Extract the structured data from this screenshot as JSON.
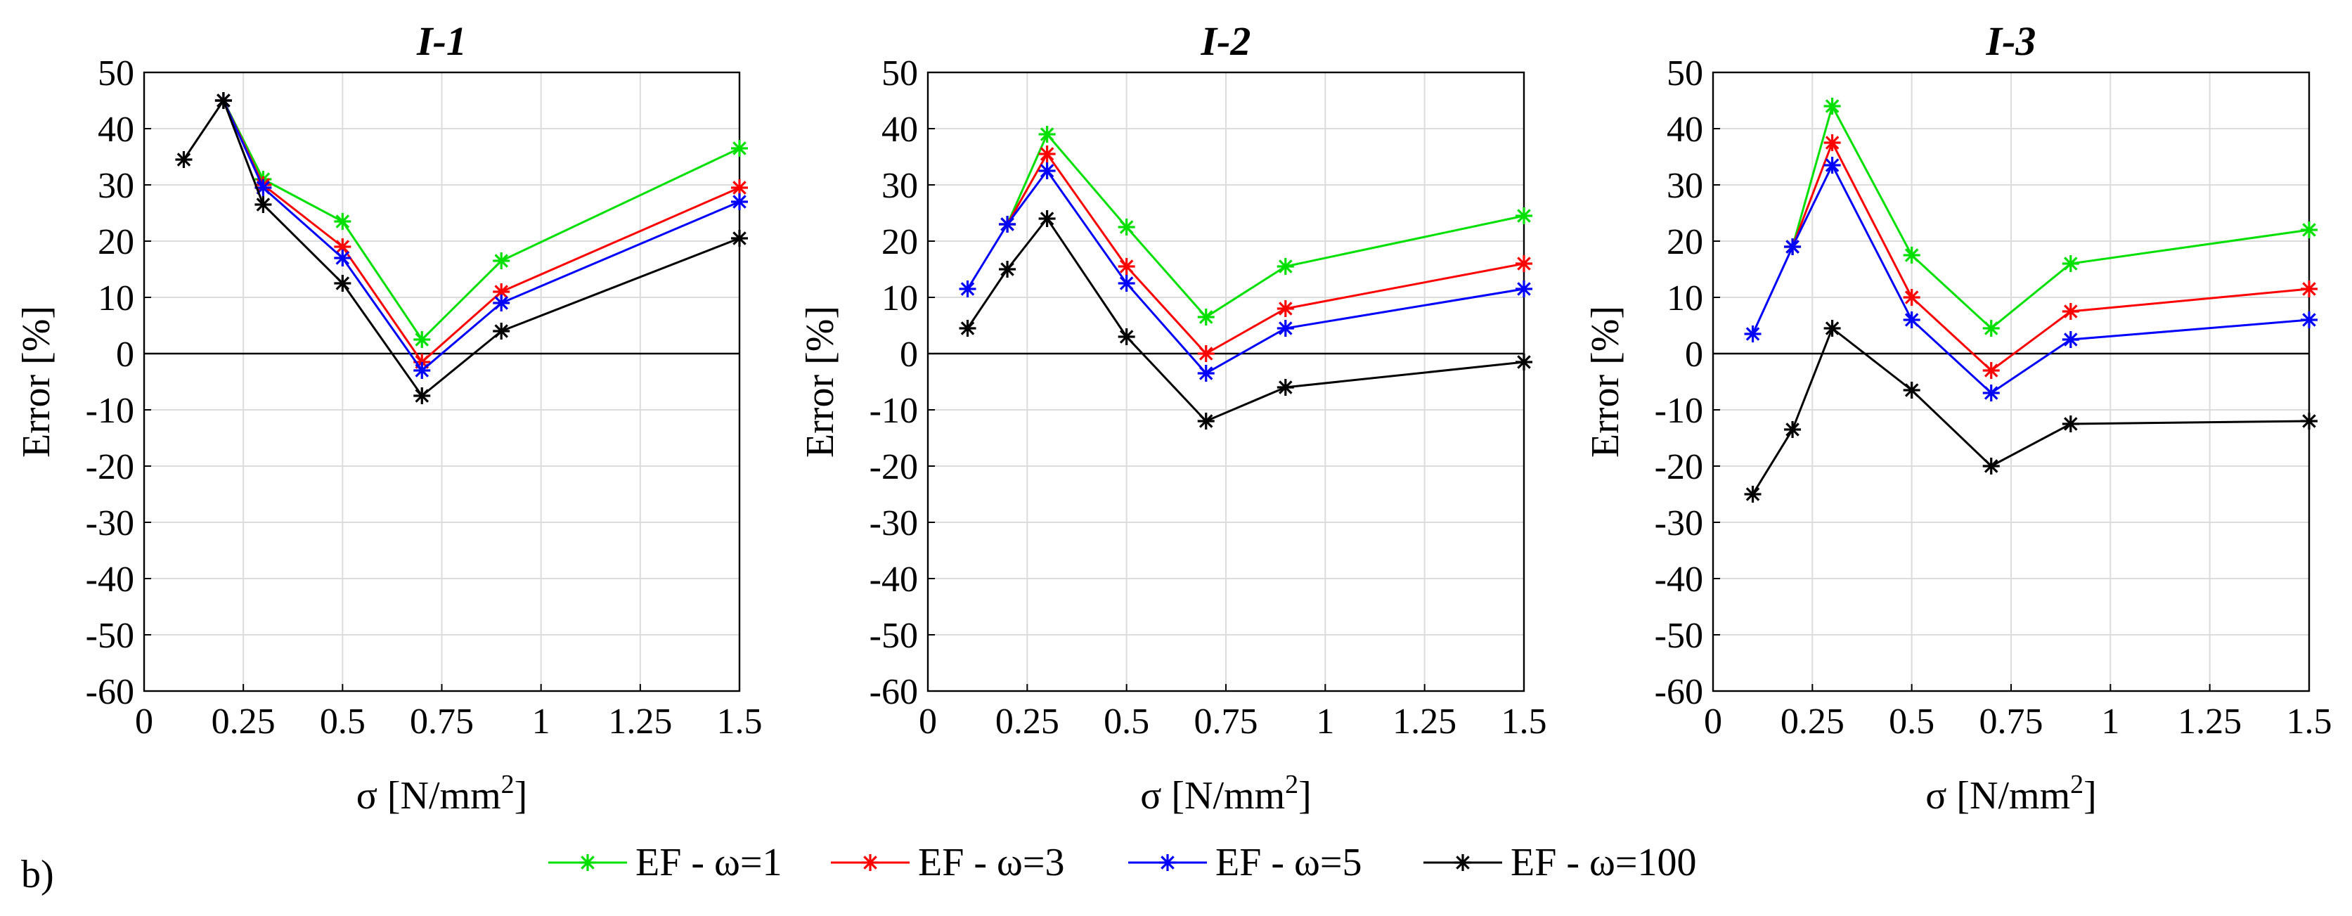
{
  "figure": {
    "panel_tag": "b)"
  },
  "colors": {
    "w1": "#00e000",
    "w3": "#ff0000",
    "w5": "#0000ff",
    "w100": "#000000",
    "grid": "#dcdcdc",
    "axis": "#000000"
  },
  "chart_data": [
    {
      "type": "line",
      "title": "I-1",
      "xlabel": "σ [N/mm",
      "xlabel_sup": "2",
      "xlabel_close": "]",
      "ylabel": "Error [%]",
      "xlim": [
        0,
        1.5
      ],
      "ylim": [
        -60,
        50
      ],
      "xticks": [
        0,
        0.25,
        0.5,
        0.75,
        1,
        1.25,
        1.5
      ],
      "xtick_labels": [
        "0",
        "0.25",
        "0.5",
        "0.75",
        "1",
        "1.25",
        "1.5"
      ],
      "yticks": [
        50,
        40,
        30,
        20,
        10,
        0,
        -10,
        -20,
        -30,
        -40,
        -50,
        -60
      ],
      "ytick_labels": [
        "50",
        "40",
        "30",
        "20",
        "10",
        "0",
        "-10",
        "-20",
        "-30",
        "-40",
        "-50",
        "-60"
      ],
      "grid": true,
      "series": [
        {
          "name": "EF - ω=1",
          "color_key": "w1",
          "x": [
            0.2,
            0.3,
            0.5,
            0.7,
            0.9,
            1.5
          ],
          "y": [
            45,
            31,
            23.5,
            2.5,
            16.5,
            36.5
          ]
        },
        {
          "name": "EF - ω=3",
          "color_key": "w3",
          "x": [
            0.2,
            0.3,
            0.5,
            0.7,
            0.9,
            1.5
          ],
          "y": [
            45,
            30,
            19,
            -1.5,
            11,
            29.5
          ]
        },
        {
          "name": "EF - ω=5",
          "color_key": "w5",
          "x": [
            0.2,
            0.3,
            0.5,
            0.7,
            0.9,
            1.5
          ],
          "y": [
            45,
            29.5,
            17,
            -3,
            9,
            27
          ]
        },
        {
          "name": "EF - ω=100",
          "color_key": "w100",
          "x": [
            0.1,
            0.2,
            0.3,
            0.5,
            0.7,
            0.9,
            1.5
          ],
          "y": [
            34.5,
            45,
            26.5,
            12.5,
            -7.5,
            4,
            20.5
          ]
        }
      ]
    },
    {
      "type": "line",
      "title": "I-2",
      "xlabel": "σ [N/mm",
      "xlabel_sup": "2",
      "xlabel_close": "]",
      "ylabel": "Error [%]",
      "xlim": [
        0,
        1.5
      ],
      "ylim": [
        -60,
        50
      ],
      "xticks": [
        0,
        0.25,
        0.5,
        0.75,
        1,
        1.25,
        1.5
      ],
      "xtick_labels": [
        "0",
        "0.25",
        "0.5",
        "0.75",
        "1",
        "1.25",
        "1.5"
      ],
      "yticks": [
        50,
        40,
        30,
        20,
        10,
        0,
        -10,
        -20,
        -30,
        -40,
        -50,
        -60
      ],
      "ytick_labels": [
        "50",
        "40",
        "30",
        "20",
        "10",
        "0",
        "-10",
        "-20",
        "-30",
        "-40",
        "-50",
        "-60"
      ],
      "grid": true,
      "series": [
        {
          "name": "EF - ω=1",
          "color_key": "w1",
          "x": [
            0.2,
            0.3,
            0.5,
            0.7,
            0.9,
            1.5
          ],
          "y": [
            23,
            39,
            22.5,
            6.5,
            15.5,
            24.5
          ]
        },
        {
          "name": "EF - ω=3",
          "color_key": "w3",
          "x": [
            0.2,
            0.3,
            0.5,
            0.7,
            0.9,
            1.5
          ],
          "y": [
            23,
            35.5,
            15.5,
            0,
            8,
            16
          ]
        },
        {
          "name": "EF - ω=5",
          "color_key": "w5",
          "x": [
            0.1,
            0.2,
            0.3,
            0.5,
            0.7,
            0.9,
            1.5
          ],
          "y": [
            11.5,
            23,
            32.5,
            12.5,
            -3.5,
            4.5,
            11.5
          ]
        },
        {
          "name": "EF - ω=100",
          "color_key": "w100",
          "x": [
            0.1,
            0.2,
            0.3,
            0.5,
            0.7,
            0.9,
            1.5
          ],
          "y": [
            4.5,
            15,
            24,
            3,
            -12,
            -6,
            -1.5
          ]
        }
      ]
    },
    {
      "type": "line",
      "title": "I-3",
      "xlabel": "σ [N/mm",
      "xlabel_sup": "2",
      "xlabel_close": "]",
      "ylabel": "Error [%]",
      "xlim": [
        0,
        1.5
      ],
      "ylim": [
        -60,
        50
      ],
      "xticks": [
        0,
        0.25,
        0.5,
        0.75,
        1,
        1.25,
        1.5
      ],
      "xtick_labels": [
        "0",
        "0.25",
        "0.5",
        "0.75",
        "1",
        "1.25",
        "1.5"
      ],
      "yticks": [
        50,
        40,
        30,
        20,
        10,
        0,
        -10,
        -20,
        -30,
        -40,
        -50,
        -60
      ],
      "ytick_labels": [
        "50",
        "40",
        "30",
        "20",
        "10",
        "0",
        "-10",
        "-20",
        "-30",
        "-40",
        "-50",
        "-60"
      ],
      "grid": true,
      "series": [
        {
          "name": "EF - ω=1",
          "color_key": "w1",
          "x": [
            0.2,
            0.3,
            0.5,
            0.7,
            0.9,
            1.5
          ],
          "y": [
            19,
            44,
            17.5,
            4.5,
            16,
            22
          ]
        },
        {
          "name": "EF - ω=3",
          "color_key": "w3",
          "x": [
            0.2,
            0.3,
            0.5,
            0.7,
            0.9,
            1.5
          ],
          "y": [
            19,
            37.5,
            10,
            -3,
            7.5,
            11.5
          ]
        },
        {
          "name": "EF - ω=5",
          "color_key": "w5",
          "x": [
            0.1,
            0.2,
            0.3,
            0.5,
            0.7,
            0.9,
            1.5
          ],
          "y": [
            3.5,
            19,
            33.5,
            6,
            -7,
            2.5,
            6
          ]
        },
        {
          "name": "EF - ω=100",
          "color_key": "w100",
          "x": [
            0.1,
            0.2,
            0.3,
            0.5,
            0.7,
            0.9,
            1.5
          ],
          "y": [
            -25,
            -13.5,
            4.5,
            -6.5,
            -20,
            -12.5,
            -12
          ]
        }
      ]
    }
  ],
  "legend": {
    "placement": "bottom-center",
    "items": [
      {
        "label": "EF - ω=1",
        "color_key": "w1"
      },
      {
        "label": "EF - ω=3",
        "color_key": "w3"
      },
      {
        "label": "EF - ω=5",
        "color_key": "w5"
      },
      {
        "label": "EF - ω=100",
        "color_key": "w100"
      }
    ]
  }
}
